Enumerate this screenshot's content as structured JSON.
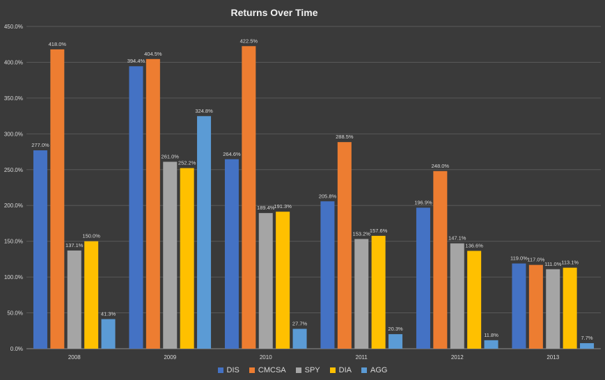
{
  "chart_data": {
    "type": "bar",
    "title": "Returns Over Time",
    "xlabel": "",
    "ylabel": "",
    "categories": [
      "2008",
      "2009",
      "2010",
      "2011",
      "2012",
      "2013"
    ],
    "series": [
      {
        "name": "DIS",
        "color": "#4472c4",
        "values": [
          277.0,
          394.4,
          264.6,
          205.8,
          196.9,
          119.0
        ]
      },
      {
        "name": "CMCSA",
        "color": "#ed7d31",
        "values": [
          418.0,
          404.5,
          422.5,
          288.5,
          248.0,
          117.0
        ]
      },
      {
        "name": "SPY",
        "color": "#a5a5a5",
        "values": [
          137.1,
          261.0,
          189.4,
          153.2,
          147.1,
          111.0
        ]
      },
      {
        "name": "DIA",
        "color": "#ffc000",
        "values": [
          150.0,
          252.2,
          191.3,
          157.6,
          136.6,
          113.1
        ]
      },
      {
        "name": "AGG",
        "color": "#5b9bd5",
        "values": [
          41.3,
          324.8,
          27.7,
          20.3,
          11.8,
          7.7
        ]
      }
    ],
    "y_ticks": [
      "0.0%",
      "50.0%",
      "100.0%",
      "150.0%",
      "200.0%",
      "250.0%",
      "300.0%",
      "350.0%",
      "400.0%",
      "450.0%"
    ],
    "ylim": [
      0,
      450
    ],
    "value_suffix": "%",
    "value_decimals": 1,
    "grid": true,
    "legend_position": "bottom"
  }
}
